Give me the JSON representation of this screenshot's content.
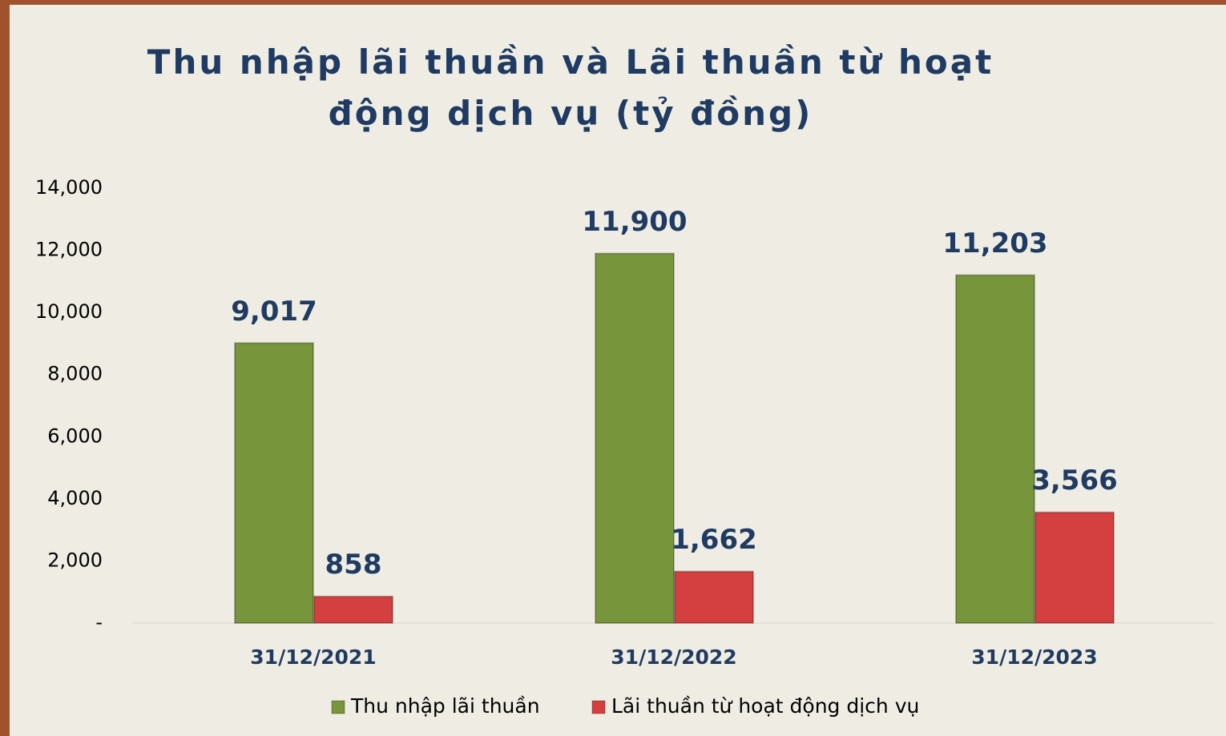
{
  "chart_data": {
    "type": "bar",
    "title": "Thu nhập lãi thuần và Lãi thuần từ hoạt động dịch vụ (tỷ đồng)",
    "categories": [
      "31/12/2021",
      "31/12/2022",
      "31/12/2023"
    ],
    "series": [
      {
        "name": "Thu nhập lãi thuần",
        "color": "#77953a",
        "values": [
          9017,
          11900,
          11203
        ],
        "value_labels": [
          "9,017",
          "11,900",
          "11,203"
        ]
      },
      {
        "name": "Lãi thuần từ hoạt động dịch vụ",
        "color": "#d43f3f",
        "values": [
          858,
          1662,
          3566
        ],
        "value_labels": [
          "858",
          "1,662",
          "3,566"
        ]
      }
    ],
    "ylim": [
      0,
      14000
    ],
    "yticks": [
      {
        "value": 0,
        "label": "-"
      },
      {
        "value": 2000,
        "label": "2,000"
      },
      {
        "value": 4000,
        "label": "4,000"
      },
      {
        "value": 6000,
        "label": "6,000"
      },
      {
        "value": 8000,
        "label": "8,000"
      },
      {
        "value": 10000,
        "label": "10,000"
      },
      {
        "value": 12000,
        "label": "12,000"
      },
      {
        "value": 14000,
        "label": "14,000"
      }
    ],
    "legend": "bottom"
  }
}
